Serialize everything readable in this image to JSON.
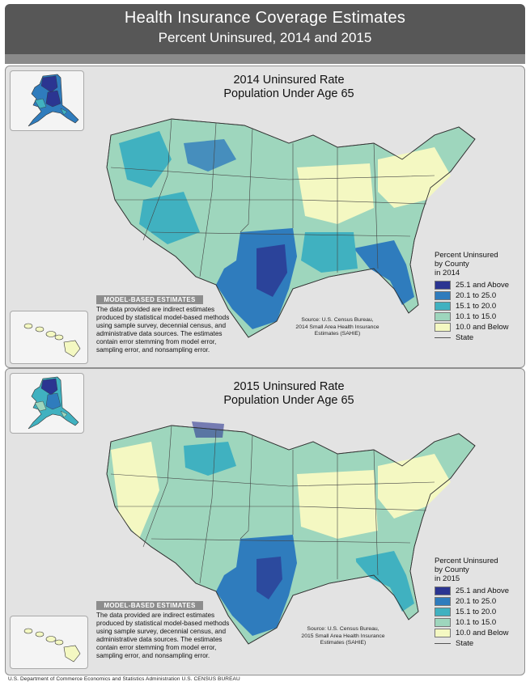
{
  "header": {
    "title": "Health Insurance Coverage Estimates",
    "subtitle": "Percent Uninsured, 2014 and 2015"
  },
  "colors": {
    "c25": "#2b3591",
    "c20": "#2f7cbd",
    "c15": "#40b1c0",
    "c10": "#9ed6bd",
    "c0": "#f4f8c2",
    "state_line": "#555555"
  },
  "panels": [
    {
      "title_line1": "2014 Uninsured Rate",
      "title_line2": "Population Under Age 65",
      "legend_title": "Percent Uninsured\nby County\nin 2014",
      "source": "Source: U.S. Census Bureau,\n2014 Small Area Health Insurance\nEstimates (SAHIE)"
    },
    {
      "title_line1": "2015 Uninsured Rate",
      "title_line2": "Population Under Age 65",
      "legend_title": "Percent Uninsured\nby County\nin 2015",
      "source": "Source: U.S. Census Bureau,\n2015 Small Area Health Insurance\nEstimates (SAHIE)"
    }
  ],
  "legend_items": [
    "25.1 and Above",
    "20.1 to 25.0",
    "15.1 to 20.0",
    "10.1 to 15.0",
    "10.0 and Below",
    "State"
  ],
  "model_based": {
    "heading": "MODEL-BASED ESTIMATES",
    "text": "The data provided are indirect estimates produced by statistical model-based methods using sample survey, decennial census, and administrative data sources. The estimates contain error stemming from model error, sampling error, and nonsampling error."
  },
  "footer": "U.S. Department of Commerce  Economics and Statistics Administration  U.S. CENSUS BUREAU"
}
